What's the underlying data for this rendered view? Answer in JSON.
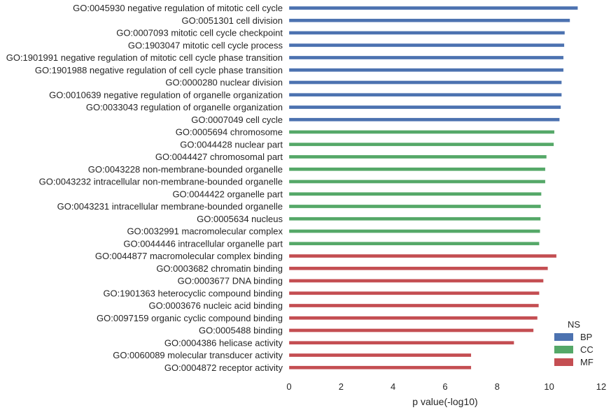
{
  "chart_data": {
    "type": "bar",
    "orientation": "horizontal",
    "categories": [
      "GO:0045930 negative regulation of mitotic cell cycle",
      "GO:0051301 cell division",
      "GO:0007093 mitotic cell cycle checkpoint",
      "GO:1903047 mitotic cell cycle process",
      "GO:1901991 negative regulation of mitotic cell cycle phase transition",
      "GO:1901988 negative regulation of cell cycle phase transition",
      "GO:0000280 nuclear division",
      "GO:0010639 negative regulation of organelle organization",
      "GO:0033043 regulation of organelle organization",
      "GO:0007049 cell cycle",
      "GO:0005694 chromosome",
      "GO:0044428 nuclear part",
      "GO:0044427 chromosomal part",
      "GO:0043228 non-membrane-bounded organelle",
      "GO:0043232 intracellular non-membrane-bounded organelle",
      "GO:0044422 organelle part",
      "GO:0043231 intracellular membrane-bounded organelle",
      "GO:0005634 nucleus",
      "GO:0032991 macromolecular complex",
      "GO:0044446 intracellular organelle part",
      "GO:0044877 macromolecular complex binding",
      "GO:0003682 chromatin binding",
      "GO:0003677 DNA binding",
      "GO:1901363 heterocyclic compound binding",
      "GO:0003676 nucleic acid binding",
      "GO:0097159 organic cyclic compound binding",
      "GO:0005488 binding",
      "GO:0004386 helicase activity",
      "GO:0060089 molecular transducer activity",
      "GO:0004872 receptor activity"
    ],
    "values": [
      11.1,
      10.8,
      10.6,
      10.58,
      10.55,
      10.55,
      10.48,
      10.48,
      10.45,
      10.4,
      10.2,
      10.18,
      9.9,
      9.85,
      9.85,
      9.7,
      9.68,
      9.67,
      9.65,
      9.62,
      10.28,
      9.95,
      9.78,
      9.62,
      9.6,
      9.55,
      9.4,
      8.65,
      7.0,
      7.0
    ],
    "groups": [
      "BP",
      "BP",
      "BP",
      "BP",
      "BP",
      "BP",
      "BP",
      "BP",
      "BP",
      "BP",
      "CC",
      "CC",
      "CC",
      "CC",
      "CC",
      "CC",
      "CC",
      "CC",
      "CC",
      "CC",
      "MF",
      "MF",
      "MF",
      "MF",
      "MF",
      "MF",
      "MF",
      "MF",
      "MF",
      "MF"
    ],
    "xlabel": "p value(-log10)",
    "xlim": [
      0,
      12
    ],
    "xticks": [
      "0",
      "2",
      "4",
      "6",
      "8",
      "10",
      "12"
    ],
    "grid": false,
    "legend": {
      "title": "NS",
      "placement": "bottom-right",
      "entries": [
        {
          "name": "BP",
          "color": "#4c72b0"
        },
        {
          "name": "CC",
          "color": "#55a868"
        },
        {
          "name": "MF",
          "color": "#c44e52"
        }
      ]
    }
  }
}
